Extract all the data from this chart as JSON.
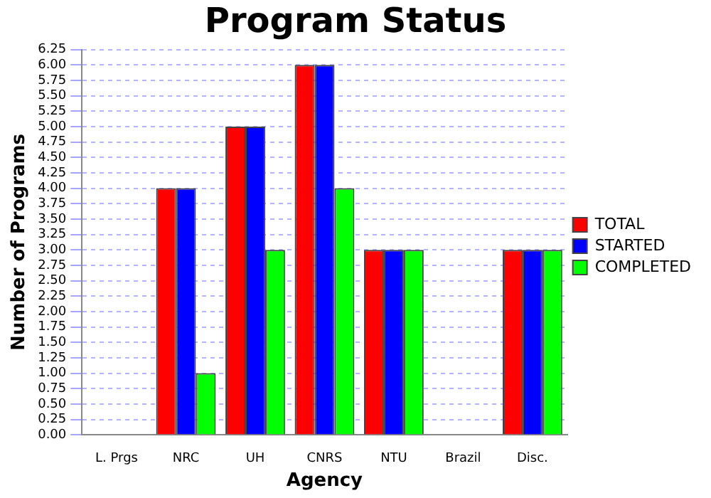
{
  "chart_data": {
    "type": "bar",
    "title": "Program Status",
    "xlabel": "Agency",
    "ylabel": "Number of Programs",
    "categories": [
      "L. Prgs",
      "NRC",
      "UH",
      "CNRS",
      "NTU",
      "Brazil",
      "Disc."
    ],
    "series": [
      {
        "name": "TOTAL",
        "color": "#ff0000",
        "values": [
          0,
          4,
          5,
          6,
          3,
          0,
          3
        ]
      },
      {
        "name": "STARTED",
        "color": "#0000ff",
        "values": [
          0,
          4,
          5,
          6,
          3,
          0,
          3
        ]
      },
      {
        "name": "COMPLETED",
        "color": "#00ff00",
        "values": [
          0,
          1,
          3,
          4,
          3,
          0,
          3
        ]
      }
    ],
    "ylim": [
      0,
      6.25
    ],
    "yticks": [
      {
        "value": 0,
        "label": "0.00"
      },
      {
        "value": 0.25,
        "label": "0.25"
      },
      {
        "value": 0.5,
        "label": "0.50"
      },
      {
        "value": 0.75,
        "label": "0.75"
      },
      {
        "value": 1,
        "label": "1.00"
      },
      {
        "value": 1.25,
        "label": "1.25"
      },
      {
        "value": 1.5,
        "label": "1.50"
      },
      {
        "value": 1.75,
        "label": "1.75"
      },
      {
        "value": 2,
        "label": "2.00"
      },
      {
        "value": 2.25,
        "label": "2.25"
      },
      {
        "value": 2.5,
        "label": "2.50"
      },
      {
        "value": 2.75,
        "label": "2.75"
      },
      {
        "value": 3,
        "label": "3.00"
      },
      {
        "value": 3.25,
        "label": "3.25"
      },
      {
        "value": 3.5,
        "label": "3.50"
      },
      {
        "value": 3.75,
        "label": "3.75"
      },
      {
        "value": 4,
        "label": "4.00"
      },
      {
        "value": 4.25,
        "label": "4.25"
      },
      {
        "value": 4.5,
        "label": "4.50"
      },
      {
        "value": 4.75,
        "label": "4.75"
      },
      {
        "value": 5,
        "label": "5.00"
      },
      {
        "value": 5.25,
        "label": "5.25"
      },
      {
        "value": 5.5,
        "label": "5.50"
      },
      {
        "value": 5.75,
        "label": "5.75"
      },
      {
        "value": 6,
        "label": "6.00"
      },
      {
        "value": 6.25,
        "label": "6.25"
      }
    ],
    "grid": "y",
    "legend": "right"
  }
}
